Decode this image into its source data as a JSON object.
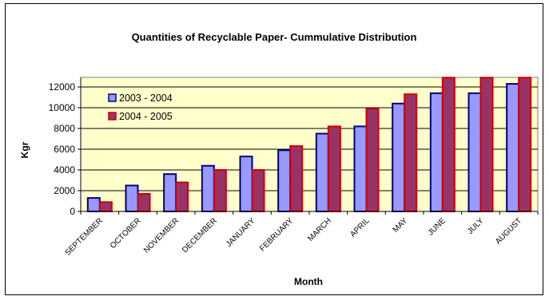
{
  "chart_data": {
    "type": "bar",
    "title": "Quantities of Recyclable Paper- Cummulative Distribution",
    "xlabel": "Month",
    "ylabel": "Kgr",
    "ylim": [
      0,
      12000
    ],
    "yticks": [
      0,
      2000,
      4000,
      6000,
      8000,
      10000,
      12000
    ],
    "grid": true,
    "legend_position": "top-left",
    "categories": [
      "SEPTEMBER",
      "OCTOBER",
      "NOVEMBER",
      "DECEMBER",
      "JANUARY",
      "FEBRUARY",
      "MARCH",
      "APRIL",
      "MAY",
      "JUNE",
      "JULY",
      "AUGUST"
    ],
    "series": [
      {
        "name": "2003 - 2004",
        "color": "#9999FF",
        "border": "#000080",
        "values": [
          1300,
          2500,
          3600,
          4400,
          5300,
          5900,
          7500,
          8200,
          10400,
          11400,
          11400,
          12300
        ]
      },
      {
        "name": "2004 - 2005",
        "color": "#993366",
        "border": "#CC0000",
        "values": [
          900,
          1700,
          2800,
          4000,
          4000,
          6300,
          8200,
          9900,
          11300,
          12900,
          12900,
          12900
        ]
      }
    ],
    "plot_background": "#FFFFCC"
  }
}
